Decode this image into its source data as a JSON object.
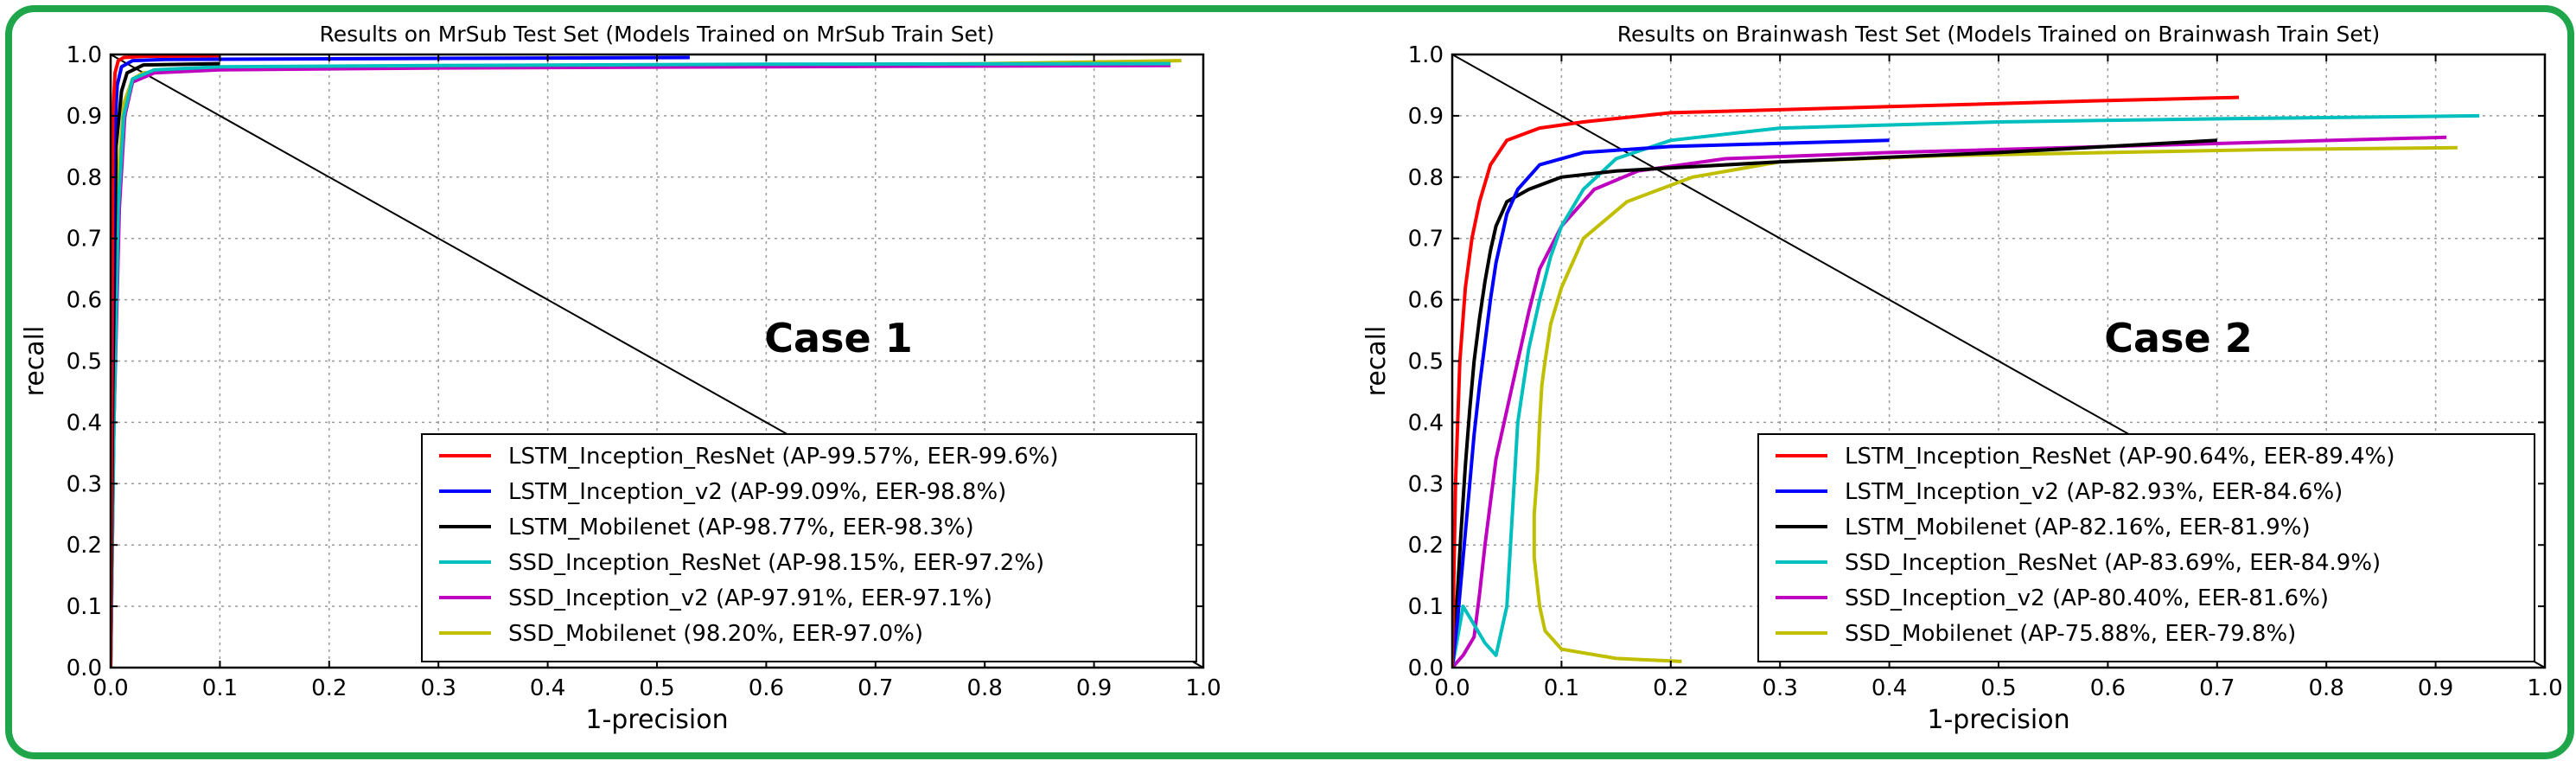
{
  "figure": {
    "frame_color": "#1fa64a"
  },
  "chart_data": [
    {
      "type": "line",
      "title": "Results on MrSub Test Set (Models Trained on MrSub Train Set)",
      "xlabel": "1-precision",
      "ylabel": "recall",
      "xlim": [
        0.0,
        1.0
      ],
      "ylim": [
        0.0,
        1.0
      ],
      "xticks": [
        "0.0",
        "0.1",
        "0.2",
        "0.3",
        "0.4",
        "0.5",
        "0.6",
        "0.7",
        "0.8",
        "0.9",
        "1.0"
      ],
      "yticks": [
        "0.0",
        "0.1",
        "0.2",
        "0.3",
        "0.4",
        "0.5",
        "0.6",
        "0.7",
        "0.8",
        "0.9",
        "1.0"
      ],
      "grid": true,
      "legend_position": "lower-right",
      "annotation": "Case 1",
      "diagonal": [
        [
          0.0,
          1.0
        ],
        [
          1.0,
          0.0
        ]
      ],
      "series": [
        {
          "name": "LSTM_Inception_ResNet (AP-99.57%, EER-99.6%)",
          "color": "#ff0000",
          "x": [
            0.0,
            0.001,
            0.002,
            0.004,
            0.007,
            0.012,
            0.03,
            0.1
          ],
          "y": [
            0.0,
            0.45,
            0.9,
            0.97,
            0.99,
            0.995,
            0.997,
            0.998
          ]
        },
        {
          "name": "LSTM_Inception_v2 (AP-99.09%, EER-98.8%)",
          "color": "#0000ff",
          "x": [
            0.0,
            0.001,
            0.003,
            0.006,
            0.01,
            0.02,
            0.05,
            0.2,
            0.53
          ],
          "y": [
            0.0,
            0.4,
            0.85,
            0.95,
            0.98,
            0.99,
            0.992,
            0.993,
            0.995
          ]
        },
        {
          "name": "LSTM_Mobilenet (AP-98.77%, EER-98.3%)",
          "color": "#000000",
          "x": [
            0.0,
            0.002,
            0.005,
            0.01,
            0.015,
            0.03,
            0.1
          ],
          "y": [
            0.0,
            0.45,
            0.85,
            0.94,
            0.97,
            0.983,
            0.985
          ]
        },
        {
          "name": "SSD_Inception_ResNet (AP-98.15%, EER-97.2%)",
          "color": "#00bfbf",
          "x": [
            0.0,
            0.003,
            0.007,
            0.012,
            0.02,
            0.04,
            0.1,
            0.3,
            0.6,
            0.97
          ],
          "y": [
            0.0,
            0.4,
            0.75,
            0.9,
            0.96,
            0.975,
            0.98,
            0.982,
            0.984,
            0.985
          ]
        },
        {
          "name": "SSD_Inception_v2 (AP-97.91%, EER-97.1%)",
          "color": "#bf00bf",
          "x": [
            0.0,
            0.003,
            0.008,
            0.013,
            0.02,
            0.04,
            0.1,
            0.3,
            0.6,
            0.97
          ],
          "y": [
            0.0,
            0.4,
            0.75,
            0.9,
            0.955,
            0.97,
            0.975,
            0.978,
            0.98,
            0.982
          ]
        },
        {
          "name": "SSD_Mobilenet (98.20%, EER-97.0%)",
          "color": "#bfbf00",
          "x": [
            0.0,
            0.003,
            0.007,
            0.012,
            0.02,
            0.03,
            0.06,
            0.2,
            0.5,
            0.8,
            0.98
          ],
          "y": [
            0.0,
            0.4,
            0.8,
            0.92,
            0.96,
            0.97,
            0.975,
            0.978,
            0.982,
            0.985,
            0.99
          ]
        }
      ]
    },
    {
      "type": "line",
      "title": "Results on Brainwash Test Set (Models Trained on Brainwash Train Set)",
      "xlabel": "1-precision",
      "ylabel": "recall",
      "xlim": [
        0.0,
        1.0
      ],
      "ylim": [
        0.0,
        1.0
      ],
      "xticks": [
        "0.0",
        "0.1",
        "0.2",
        "0.3",
        "0.4",
        "0.5",
        "0.6",
        "0.7",
        "0.8",
        "0.9",
        "1.0"
      ],
      "yticks": [
        "0.0",
        "0.1",
        "0.2",
        "0.3",
        "0.4",
        "0.5",
        "0.6",
        "0.7",
        "0.8",
        "0.9",
        "1.0"
      ],
      "grid": true,
      "legend_position": "lower-right",
      "annotation": "Case 2",
      "diagonal": [
        [
          0.0,
          1.0
        ],
        [
          1.0,
          0.0
        ]
      ],
      "series": [
        {
          "name": "LSTM_Inception_ResNet (AP-90.64%, EER-89.4%)",
          "color": "#ff0000",
          "x": [
            0.0,
            0.003,
            0.007,
            0.012,
            0.018,
            0.025,
            0.035,
            0.05,
            0.08,
            0.12,
            0.2,
            0.4,
            0.6,
            0.72
          ],
          "y": [
            0.0,
            0.3,
            0.5,
            0.62,
            0.7,
            0.76,
            0.82,
            0.86,
            0.88,
            0.89,
            0.905,
            0.915,
            0.925,
            0.93
          ]
        },
        {
          "name": "LSTM_Inception_v2 (AP-82.93%, EER-84.6%)",
          "color": "#0000ff",
          "x": [
            0.0,
            0.005,
            0.01,
            0.015,
            0.02,
            0.025,
            0.03,
            0.035,
            0.04,
            0.045,
            0.05,
            0.06,
            0.08,
            0.12,
            0.2,
            0.3,
            0.4
          ],
          "y": [
            0.0,
            0.08,
            0.18,
            0.28,
            0.38,
            0.46,
            0.53,
            0.6,
            0.66,
            0.7,
            0.74,
            0.78,
            0.82,
            0.84,
            0.85,
            0.855,
            0.86
          ]
        },
        {
          "name": "LSTM_Mobilenet (AP-82.16%, EER-81.9%)",
          "color": "#000000",
          "x": [
            0.0,
            0.004,
            0.008,
            0.012,
            0.016,
            0.02,
            0.025,
            0.03,
            0.035,
            0.04,
            0.05,
            0.07,
            0.1,
            0.15,
            0.3,
            0.5,
            0.7
          ],
          "y": [
            0.0,
            0.1,
            0.22,
            0.33,
            0.42,
            0.5,
            0.57,
            0.63,
            0.68,
            0.72,
            0.76,
            0.78,
            0.8,
            0.81,
            0.825,
            0.84,
            0.86
          ]
        },
        {
          "name": "SSD_Inception_ResNet (AP-83.69%, EER-84.9%)",
          "color": "#00bfbf",
          "x": [
            0.0,
            0.01,
            0.02,
            0.03,
            0.04,
            0.05,
            0.055,
            0.06,
            0.07,
            0.08,
            0.09,
            0.1,
            0.12,
            0.15,
            0.2,
            0.3,
            0.5,
            0.7,
            0.94
          ],
          "y": [
            0.0,
            0.1,
            0.07,
            0.04,
            0.02,
            0.1,
            0.25,
            0.4,
            0.52,
            0.6,
            0.67,
            0.72,
            0.78,
            0.83,
            0.86,
            0.88,
            0.89,
            0.895,
            0.9
          ]
        },
        {
          "name": "SSD_Inception_v2 (AP-80.40%, EER-81.6%)",
          "color": "#bf00bf",
          "x": [
            0.0,
            0.01,
            0.02,
            0.025,
            0.03,
            0.035,
            0.04,
            0.05,
            0.06,
            0.07,
            0.08,
            0.1,
            0.13,
            0.17,
            0.25,
            0.4,
            0.6,
            0.91
          ],
          "y": [
            0.0,
            0.02,
            0.05,
            0.12,
            0.2,
            0.27,
            0.34,
            0.42,
            0.5,
            0.58,
            0.65,
            0.72,
            0.78,
            0.81,
            0.83,
            0.84,
            0.85,
            0.865
          ]
        },
        {
          "name": "SSD_Mobilenet (AP-75.88%, EER-79.8%)",
          "color": "#bfbf00",
          "x": [
            0.21,
            0.15,
            0.1,
            0.085,
            0.08,
            0.075,
            0.075,
            0.078,
            0.08,
            0.082,
            0.085,
            0.09,
            0.1,
            0.12,
            0.16,
            0.22,
            0.3,
            0.45,
            0.6,
            0.75,
            0.92
          ],
          "y": [
            0.01,
            0.015,
            0.03,
            0.06,
            0.1,
            0.18,
            0.25,
            0.32,
            0.4,
            0.46,
            0.5,
            0.56,
            0.62,
            0.7,
            0.76,
            0.8,
            0.825,
            0.835,
            0.84,
            0.845,
            0.848
          ]
        }
      ]
    }
  ]
}
